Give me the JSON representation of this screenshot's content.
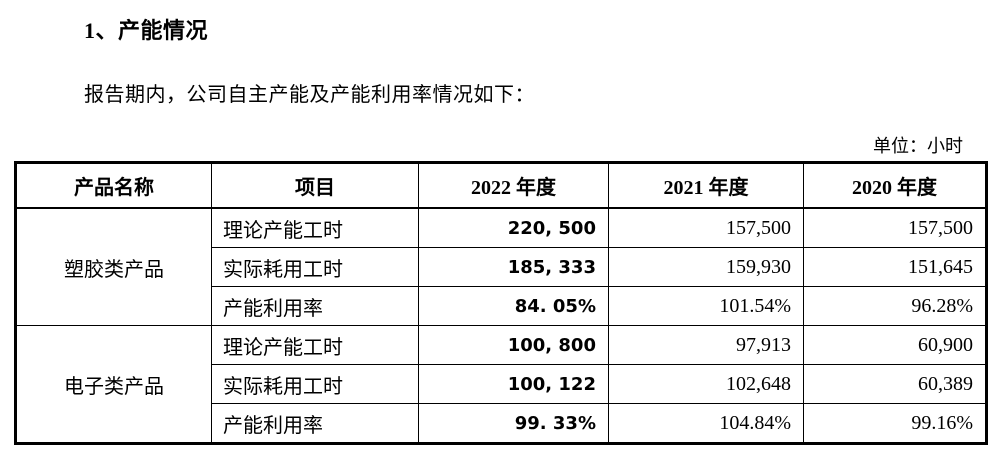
{
  "page": {
    "title": "1、产能情况",
    "intro": "报告期内，公司自主产能及产能利用率情况如下：",
    "unit_label": "单位：小时"
  },
  "table": {
    "headers": [
      "产品名称",
      "项目",
      "2022 年度",
      "2021 年度",
      "2020 年度"
    ],
    "groups": [
      {
        "product": "塑胶类产品",
        "rows": [
          {
            "item": "理论产能工时",
            "y2022": "220, 500",
            "y2021": "157,500",
            "y2020": "157,500"
          },
          {
            "item": "实际耗用工时",
            "y2022": "185, 333",
            "y2021": "159,930",
            "y2020": "151,645"
          },
          {
            "item": "产能利用率",
            "y2022": "84. 05%",
            "y2021": "101.54%",
            "y2020": "96.28%"
          }
        ]
      },
      {
        "product": "电子类产品",
        "rows": [
          {
            "item": "理论产能工时",
            "y2022": "100, 800",
            "y2021": "97,913",
            "y2020": "60,900"
          },
          {
            "item": "实际耗用工时",
            "y2022": "100, 122",
            "y2021": "102,648",
            "y2020": "60,389"
          },
          {
            "item": "产能利用率",
            "y2022": "99. 33%",
            "y2021": "104.84%",
            "y2020": "99.16%"
          }
        ]
      }
    ]
  }
}
